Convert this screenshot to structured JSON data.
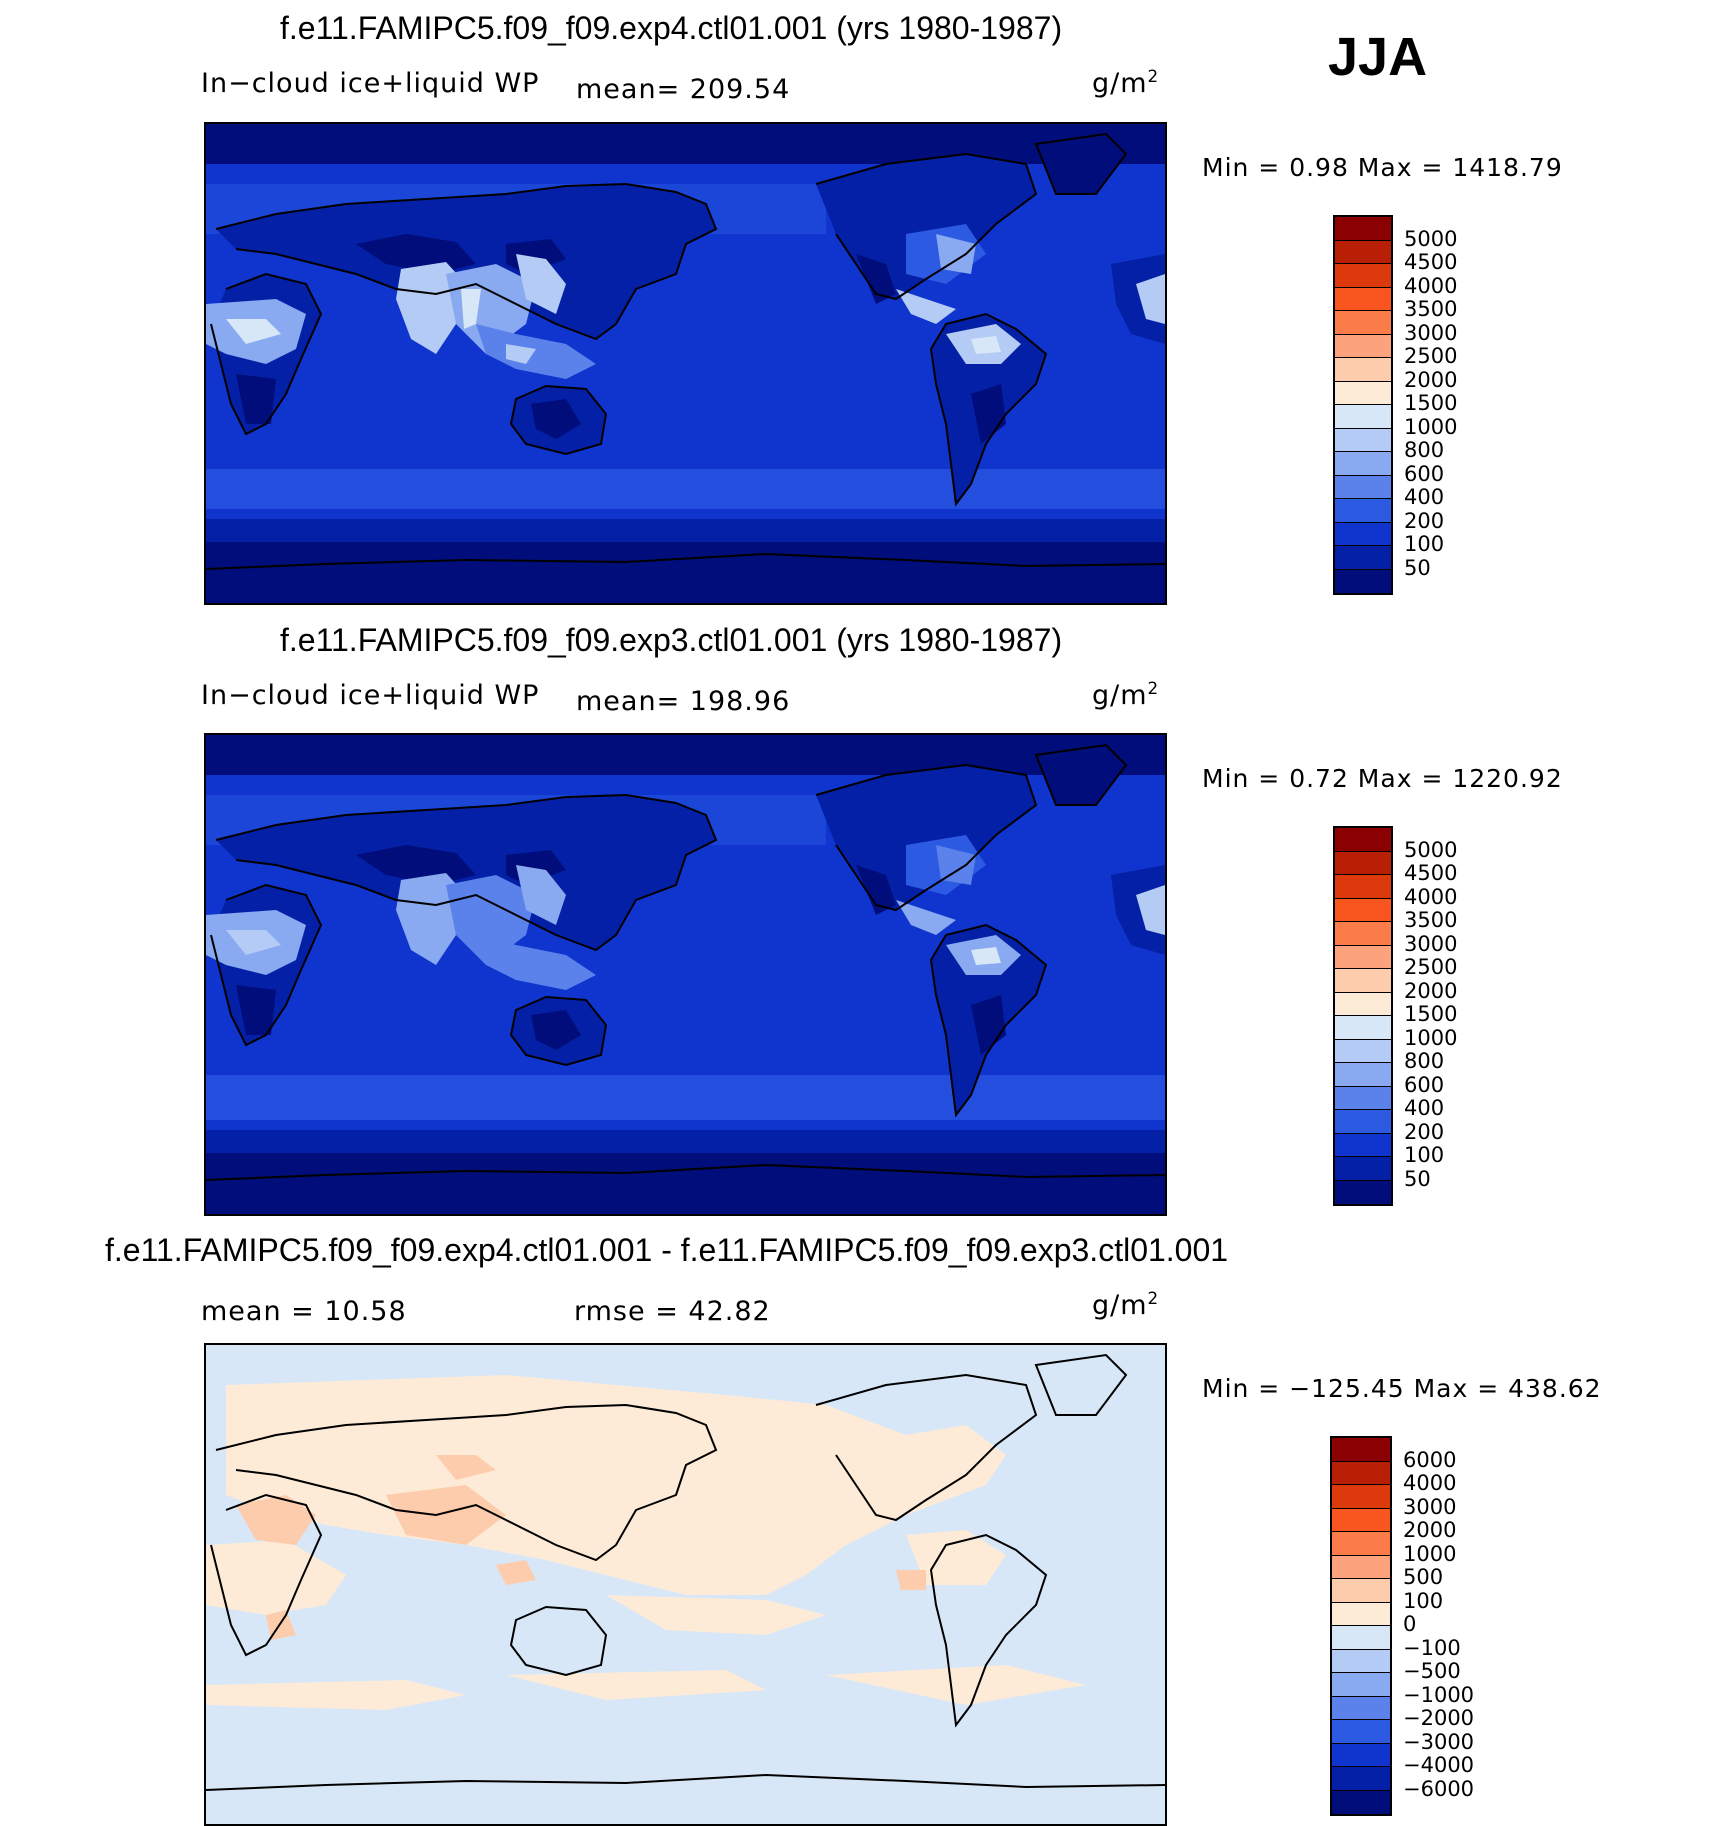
{
  "season": "JJA",
  "panels": [
    {
      "title": "f.e11.FAMIPC5.f09_f09.exp4.ctl01.001 (yrs 1980-1987)",
      "variable": "In−cloud ice+liquid WP",
      "stat_text": "mean=  209.54",
      "units_base": "g/m",
      "units_exp": "2",
      "minmax": "Min  =     0.98  Max  =  1418.79"
    },
    {
      "title": "f.e11.FAMIPC5.f09_f09.exp3.ctl01.001 (yrs 1980-1987)",
      "variable": "In−cloud ice+liquid WP",
      "stat_text": "mean=  198.96",
      "units_base": "g/m",
      "units_exp": "2",
      "minmax": "Min  =     0.72  Max  =  1220.92"
    },
    {
      "title": "f.e11.FAMIPC5.f09_f09.exp4.ctl01.001 - f.e11.FAMIPC5.f09_f09.exp3.ctl01.001",
      "variable": "mean  =    10.58",
      "stat_text": "rmse  =    42.82",
      "units_base": "g/m",
      "units_exp": "2",
      "minmax": "Min  = −125.45  Max  =  438.62"
    }
  ],
  "colorbar_main": {
    "labels": [
      "5000",
      "4500",
      "4000",
      "3500",
      "3000",
      "2500",
      "2000",
      "1500",
      "1000",
      "800",
      "600",
      "400",
      "200",
      "100",
      "50"
    ],
    "colors": [
      "#8b0000",
      "#b81f05",
      "#dc3a0c",
      "#f8561e",
      "#fb7c48",
      "#fca37d",
      "#fdccac",
      "#fdebd8",
      "#d8e7f7",
      "#b3cbf5",
      "#89a9f1",
      "#5a82ea",
      "#2d5ae3",
      "#1035cf",
      "#0320a7",
      "#000d7a"
    ]
  },
  "colorbar_diff": {
    "labels": [
      "6000",
      "4000",
      "3000",
      "2000",
      "1000",
      "500",
      "100",
      "0",
      "−100",
      "−500",
      "−1000",
      "−2000",
      "−3000",
      "−4000",
      "−6000"
    ],
    "colors": [
      "#8b0000",
      "#b81f05",
      "#dc3a0c",
      "#f8561e",
      "#fb7c48",
      "#fca37d",
      "#fdccac",
      "#fdebd8",
      "#d8e7f7",
      "#b3cbf5",
      "#89a9f1",
      "#5a82ea",
      "#2d5ae3",
      "#1035cf",
      "#0320a7",
      "#000d7a"
    ]
  }
}
